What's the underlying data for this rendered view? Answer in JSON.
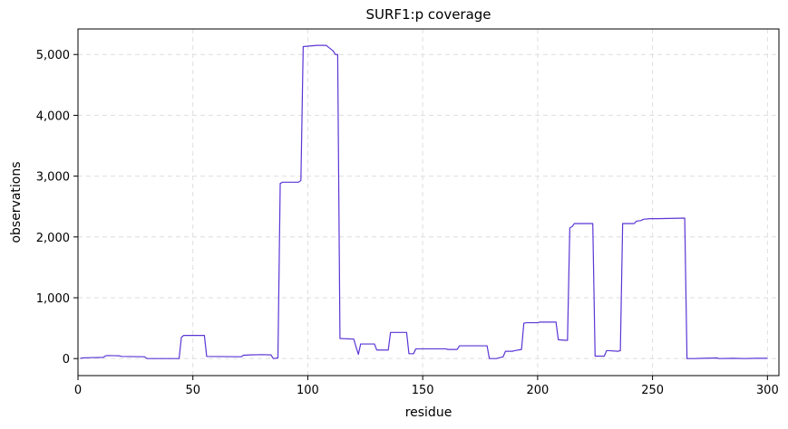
{
  "chart_data": {
    "type": "line",
    "title": "SURF1:p coverage",
    "xlabel": "residue",
    "ylabel": "observations",
    "xlim": [
      0,
      305
    ],
    "ylim": [
      -280,
      5420
    ],
    "xticks": [
      0,
      50,
      100,
      150,
      200,
      250,
      300
    ],
    "xtick_labels": [
      "0",
      "50",
      "100",
      "150",
      "200",
      "250",
      "300"
    ],
    "yticks": [
      0,
      1000,
      2000,
      3000,
      4000,
      5000
    ],
    "ytick_labels": [
      "0",
      "1,000",
      "2,000",
      "3,000",
      "4,000",
      "5,000"
    ],
    "grid": true,
    "line_color": "#5b35d5",
    "series": [
      {
        "x": [
          1,
          2,
          5,
          11,
          12,
          13,
          18,
          19,
          29,
          30,
          44,
          45,
          46,
          55,
          56,
          71,
          72,
          75,
          80,
          84,
          85,
          87,
          88,
          89,
          96,
          97,
          98,
          104,
          108,
          109,
          111,
          112,
          113,
          114,
          120,
          121,
          122,
          123,
          129,
          130,
          135,
          136,
          137,
          143,
          144,
          146,
          147,
          160,
          161,
          165,
          166,
          178,
          179,
          182,
          185,
          186,
          189,
          190,
          193,
          194,
          195,
          200,
          201,
          208,
          209,
          212,
          213,
          214,
          215,
          216,
          224,
          225,
          229,
          230,
          231,
          235,
          236,
          237,
          242,
          243,
          245,
          246,
          249,
          252,
          264,
          265,
          268,
          272,
          278,
          279,
          285,
          290,
          295,
          300
        ],
        "y": [
          5,
          10,
          15,
          20,
          45,
          50,
          45,
          35,
          30,
          0,
          0,
          350,
          380,
          380,
          35,
          30,
          55,
          60,
          65,
          60,
          0,
          10,
          2880,
          2900,
          2900,
          2930,
          5130,
          5150,
          5150,
          5120,
          5060,
          5000,
          5000,
          330,
          320,
          190,
          70,
          240,
          240,
          140,
          140,
          430,
          430,
          430,
          80,
          80,
          160,
          160,
          150,
          150,
          210,
          210,
          0,
          0,
          30,
          120,
          120,
          130,
          150,
          580,
          590,
          590,
          600,
          600,
          310,
          300,
          300,
          2150,
          2170,
          2220,
          2220,
          40,
          40,
          130,
          130,
          120,
          130,
          2220,
          2220,
          2260,
          2270,
          2290,
          2300,
          2300,
          2310,
          0,
          0,
          5,
          10,
          0,
          5,
          0,
          5,
          5
        ]
      }
    ]
  }
}
